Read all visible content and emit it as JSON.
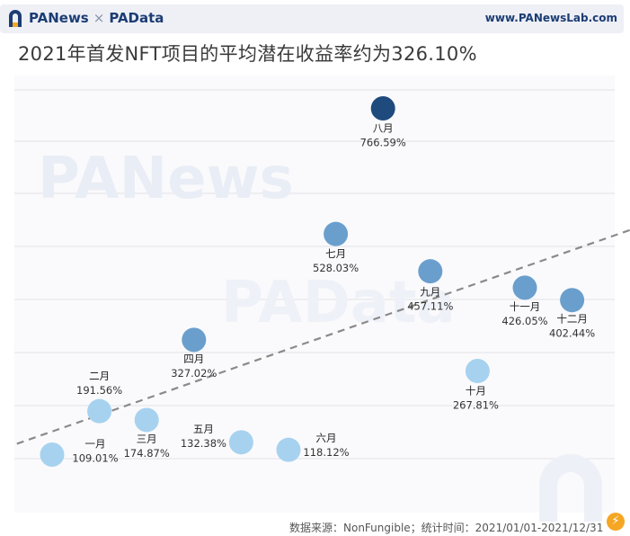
{
  "header": {
    "brand_left": "PANews",
    "brand_sep": "×",
    "brand_right": "PAData",
    "site_url": "www.PANewsLab.com"
  },
  "title": "2021年首发NFT项目的平均潜在收益率约为326.10%",
  "watermarks": [
    "PANews",
    "PAData"
  ],
  "source_text": "数据来源：NonFungible；统计时间：2021/01/01-2021/12/31",
  "chart_data": {
    "type": "scatter",
    "title": "2021年首发NFT项目的平均潜在收益率约为326.10%",
    "xlabel": "",
    "ylabel": "",
    "x": [
      1,
      2,
      3,
      4,
      5,
      6,
      7,
      8,
      9,
      10,
      11,
      12
    ],
    "categories": [
      "一月",
      "二月",
      "三月",
      "四月",
      "五月",
      "六月",
      "七月",
      "八月",
      "九月",
      "十月",
      "十一月",
      "十二月"
    ],
    "values": [
      109.01,
      191.56,
      174.87,
      327.02,
      132.38,
      118.12,
      528.03,
      766.59,
      457.11,
      267.81,
      426.05,
      402.44
    ],
    "value_labels": [
      "109.01%",
      "191.56%",
      "174.87%",
      "327.02%",
      "132.38%",
      "118.12%",
      "528.03%",
      "766.59%",
      "457.11%",
      "267.81%",
      "426.05%",
      "402.44%"
    ],
    "grid": true,
    "trendline": "linear, dashed",
    "colors": {
      "light": "#a7d2ef",
      "mid": "#6a9fcd",
      "dark": "#1f4a7d",
      "trend": "#8a8a8a",
      "grid": "#e3e3e8"
    }
  }
}
